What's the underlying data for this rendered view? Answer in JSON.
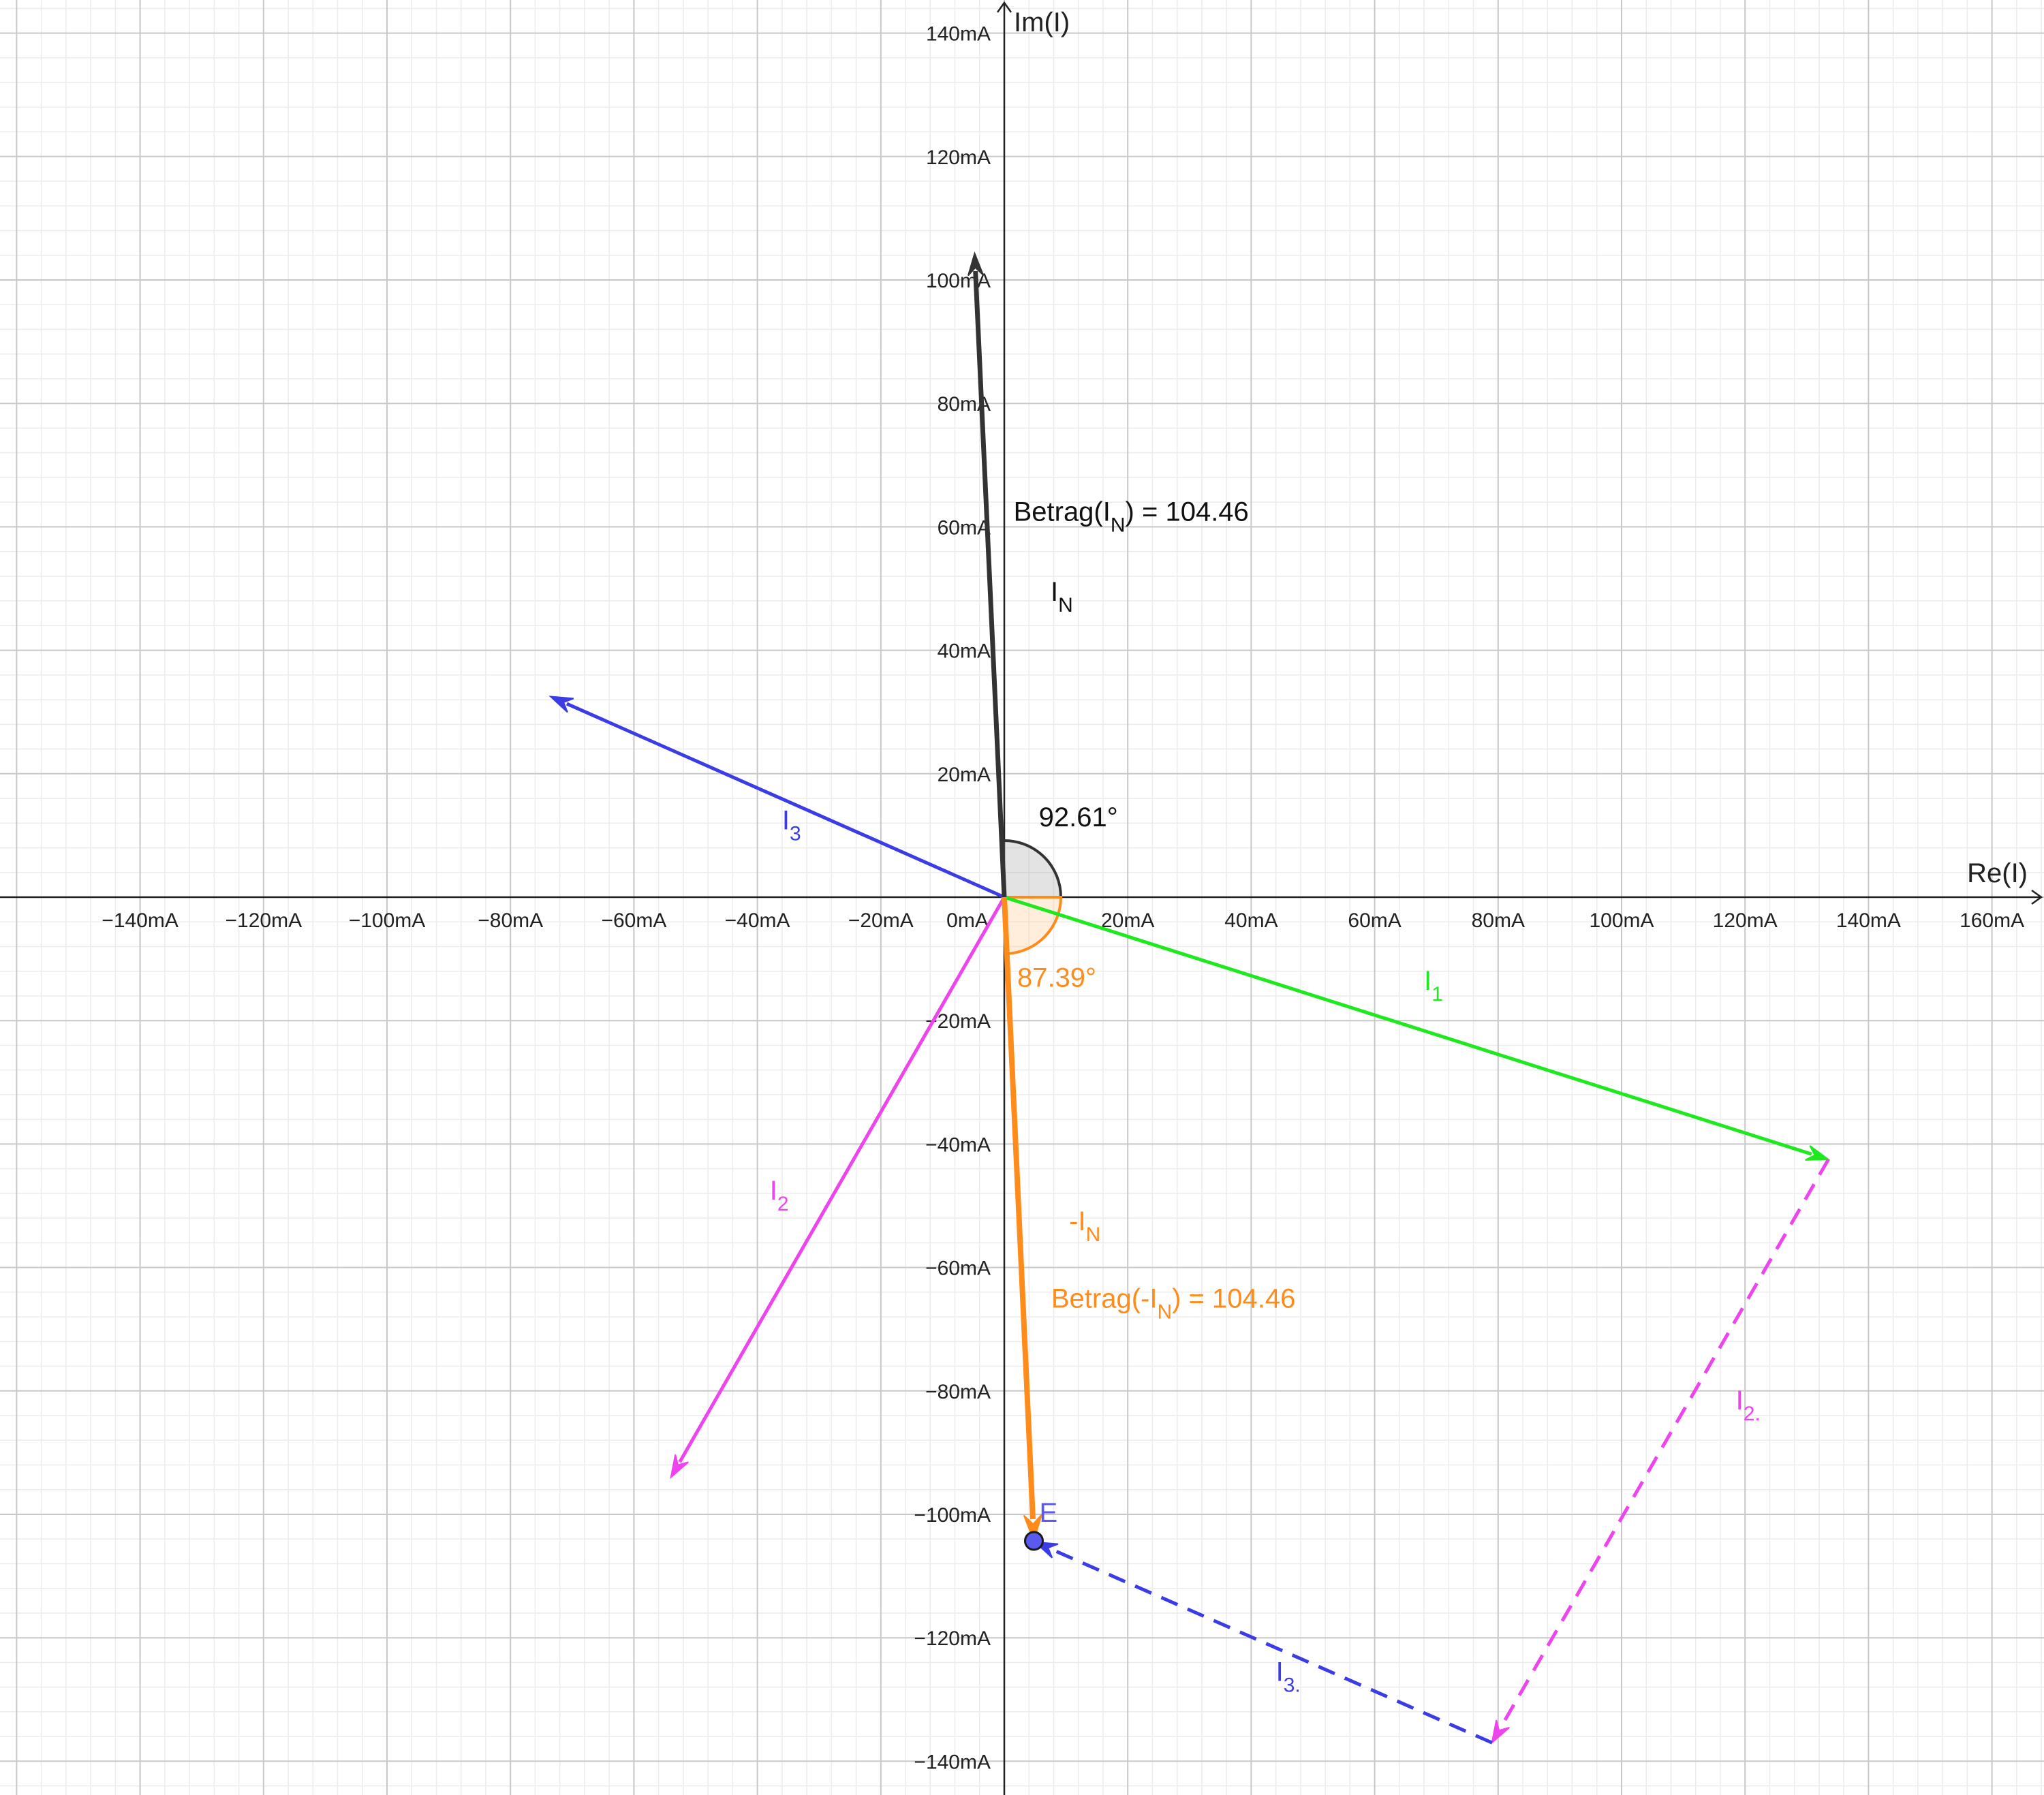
{
  "axes": {
    "x_title": "Re(I)",
    "y_title": "Im(I)",
    "x_ticks": [
      {
        "value": -140,
        "label": "−140mA"
      },
      {
        "value": -120,
        "label": "−120mA"
      },
      {
        "value": -100,
        "label": "−100mA"
      },
      {
        "value": -80,
        "label": "−80mA"
      },
      {
        "value": -60,
        "label": "−60mA"
      },
      {
        "value": -40,
        "label": "−40mA"
      },
      {
        "value": -20,
        "label": "−20mA"
      },
      {
        "value": 0,
        "label": "0mA"
      },
      {
        "value": 20,
        "label": "20mA"
      },
      {
        "value": 40,
        "label": "40mA"
      },
      {
        "value": 60,
        "label": "60mA"
      },
      {
        "value": 80,
        "label": "80mA"
      },
      {
        "value": 100,
        "label": "100mA"
      },
      {
        "value": 120,
        "label": "120mA"
      },
      {
        "value": 140,
        "label": "140mA"
      },
      {
        "value": 160,
        "label": "160mA"
      }
    ],
    "y_ticks": [
      {
        "value": 140,
        "label": "140mA"
      },
      {
        "value": 120,
        "label": "120mA"
      },
      {
        "value": 100,
        "label": "100mA"
      },
      {
        "value": 80,
        "label": "80mA"
      },
      {
        "value": 60,
        "label": "60mA"
      },
      {
        "value": 40,
        "label": "40mA"
      },
      {
        "value": 20,
        "label": "20mA"
      },
      {
        "value": -20,
        "label": "−20mA"
      },
      {
        "value": -40,
        "label": "−40mA"
      },
      {
        "value": -60,
        "label": "−60mA"
      },
      {
        "value": -80,
        "label": "−80mA"
      },
      {
        "value": -100,
        "label": "−100mA"
      },
      {
        "value": -120,
        "label": "−120mA"
      },
      {
        "value": -140,
        "label": "−140mA"
      }
    ],
    "grid": true,
    "x_range": [
      -163,
      168
    ],
    "y_range": [
      -145,
      146
    ]
  },
  "colors": {
    "I1": "#1ee81e",
    "I2": "#ee44ee",
    "I3": "#3c3ce6",
    "IN": "#333333",
    "minusIN": "#ff8c1a",
    "pointE": "#5a5aee"
  },
  "vectors": [
    {
      "id": "I1",
      "from": [
        0,
        0
      ],
      "to": [
        133.5,
        -42.5
      ],
      "color_key": "I1",
      "dashed": false,
      "label_main": "I",
      "label_sub": "1",
      "label_at": [
        68,
        -15
      ]
    },
    {
      "id": "I2",
      "from": [
        0,
        0
      ],
      "to": [
        -54,
        -94
      ],
      "color_key": "I2",
      "dashed": false,
      "label_main": "I",
      "label_sub": "2",
      "label_at": [
        -38,
        -49
      ]
    },
    {
      "id": "I3",
      "from": [
        0,
        0
      ],
      "to": [
        -73.5,
        32.5
      ],
      "color_key": "I3",
      "dashed": false,
      "label_main": "I",
      "label_sub": "3",
      "label_at": [
        -36,
        11
      ]
    },
    {
      "id": "IN",
      "from": [
        0,
        0
      ],
      "to": [
        -4.8,
        104.3
      ],
      "color_key": "IN",
      "dashed": false,
      "label_main": "I",
      "label_sub": "N",
      "label_at": [
        7.5,
        48
      ]
    },
    {
      "id": "minusIN",
      "from": [
        0,
        0
      ],
      "to": [
        4.8,
        -104.3
      ],
      "color_key": "minusIN",
      "dashed": false,
      "label_main": "-I",
      "label_sub": "N",
      "label_at": [
        10.5,
        -54
      ]
    },
    {
      "id": "I2-shifted",
      "from": [
        133.5,
        -42.5
      ],
      "to": [
        79,
        -137
      ],
      "color_key": "I2",
      "dashed": true,
      "label_main": "I",
      "label_sub": "2.",
      "label_at": [
        118.5,
        -83
      ]
    },
    {
      "id": "I3-shifted",
      "from": [
        79,
        -137
      ],
      "to": [
        5,
        -104.5
      ],
      "color_key": "I3",
      "dashed": true,
      "label_main": "I",
      "label_sub": "3.",
      "label_at": [
        44,
        -127
      ]
    }
  ],
  "angles": [
    {
      "id": "angle-IN",
      "start_deg": 0,
      "end_deg": 92.61,
      "color_key": "IN",
      "fill": "#999999",
      "label": "92.61°",
      "label_at": [
        12,
        11.5
      ]
    },
    {
      "id": "angle-minusIN",
      "start_deg": 272.61,
      "end_deg": 360,
      "color_key": "minusIN",
      "fill": "#ffc27f",
      "label": "87.39°",
      "label_at": [
        8.5,
        -14.5
      ]
    }
  ],
  "point_E": {
    "label": "E",
    "at": [
      4.8,
      -104.3
    ]
  },
  "texts": {
    "betrag_IN": {
      "main": "Betrag(I",
      "sub": "N",
      "tail": ") = 104.46"
    },
    "betrag_minusIN": {
      "main": "Betrag(-I",
      "sub": "N",
      "tail": ") = 104.46"
    }
  }
}
